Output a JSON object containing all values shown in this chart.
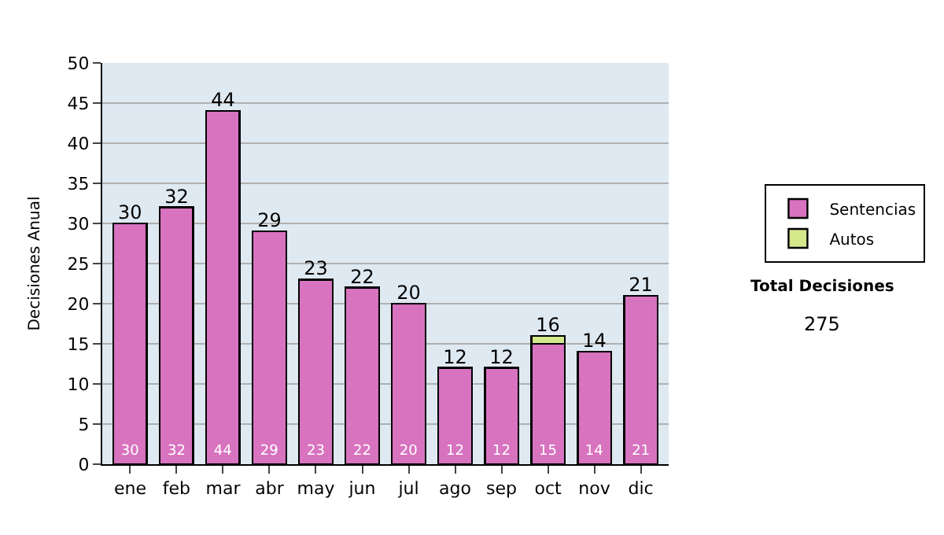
{
  "chart_data": {
    "type": "bar",
    "stacked": true,
    "ylabel": "Decisiones Anual",
    "categories": [
      "ene",
      "feb",
      "mar",
      "abr",
      "may",
      "jun",
      "jul",
      "ago",
      "sep",
      "oct",
      "nov",
      "dic"
    ],
    "series": [
      {
        "name": "Sentencias",
        "color": "#d873bf",
        "values": [
          30,
          32,
          44,
          29,
          23,
          22,
          20,
          12,
          12,
          15,
          14,
          21
        ],
        "value_labels": [
          "30",
          "32",
          "44",
          "29",
          "23",
          "22",
          "20",
          "12",
          "12",
          "15",
          "14",
          "21"
        ]
      },
      {
        "name": "Autos",
        "color": "#d4e88c",
        "values": [
          null,
          null,
          null,
          null,
          null,
          null,
          null,
          null,
          null,
          1,
          null,
          null
        ]
      }
    ],
    "totals": [
      "30",
      "32",
      "44",
      "29",
      "23",
      "22",
      "20",
      "12",
      "12",
      "16",
      "14",
      "21"
    ],
    "ylim": [
      0,
      50
    ],
    "yticks": [
      0,
      5,
      10,
      15,
      20,
      25,
      30,
      35,
      40,
      45,
      50
    ],
    "grid": "y",
    "legend": "right",
    "annotations": [
      "Total Decisiones",
      "275"
    ]
  }
}
